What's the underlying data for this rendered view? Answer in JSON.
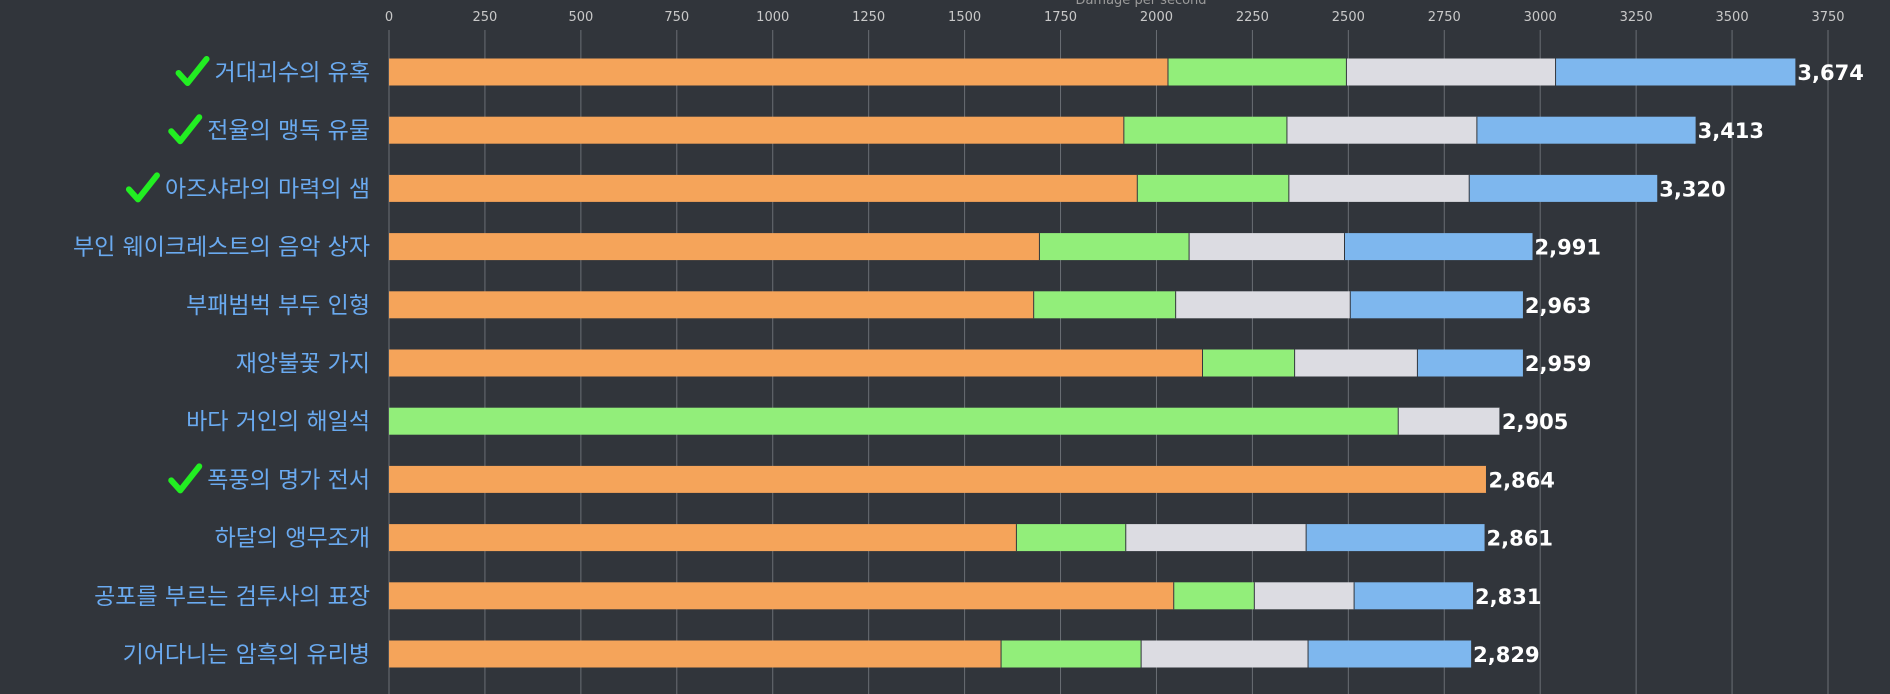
{
  "chart_data": {
    "type": "bar",
    "orientation": "horizontal",
    "stacked": true,
    "xlabel": "Damage per second",
    "xlim": [
      0,
      3750
    ],
    "x_ticks": [
      "0",
      "250",
      "500",
      "750",
      "1000",
      "1250",
      "1500",
      "1750",
      "2000",
      "2250",
      "2500",
      "2750",
      "3000",
      "3250",
      "3500",
      "3750"
    ],
    "grid": true,
    "categories": [
      "거대괴수의 유혹",
      "전율의 맹독 유물",
      "아즈샤라의 마력의 샘",
      "부인 웨이크레스트의 음악 상자",
      "부패범벅 부두 인형",
      "재앙불꽃 가지",
      "바다 거인의 해일석",
      "폭풍의 명가 전서",
      "하달의 앵무조개",
      "공포를 부르는 검투사의 표장",
      "기어다니는 암흑의 유리병"
    ],
    "checked": [
      true,
      true,
      true,
      false,
      false,
      false,
      false,
      true,
      false,
      false,
      false
    ],
    "series": [
      {
        "values": [
          2030,
          1915,
          1950,
          1695,
          1680,
          2120,
          0,
          2860,
          1635,
          2045,
          1595
        ]
      },
      {
        "values": [
          465,
          425,
          395,
          390,
          370,
          240,
          2630,
          0,
          285,
          210,
          365
        ]
      },
      {
        "values": [
          545,
          495,
          470,
          405,
          455,
          320,
          265,
          0,
          470,
          260,
          435
        ]
      },
      {
        "values": [
          625,
          570,
          490,
          490,
          450,
          275,
          0,
          0,
          465,
          310,
          425
        ]
      }
    ],
    "totals": [
      "3,674",
      "3,413",
      "3,320",
      "2,991",
      "2,963",
      "2,959",
      "2,905",
      "2,864",
      "2,861",
      "2,831",
      "2,829"
    ],
    "colors": {
      "series": [
        "#f5a45a",
        "#92ee7a",
        "#dcdce2",
        "#7eb7ee"
      ],
      "category_label": "#6aaaf0",
      "check": "#22ee22",
      "background": "#31353b",
      "grid": "#6a6e74"
    }
  }
}
